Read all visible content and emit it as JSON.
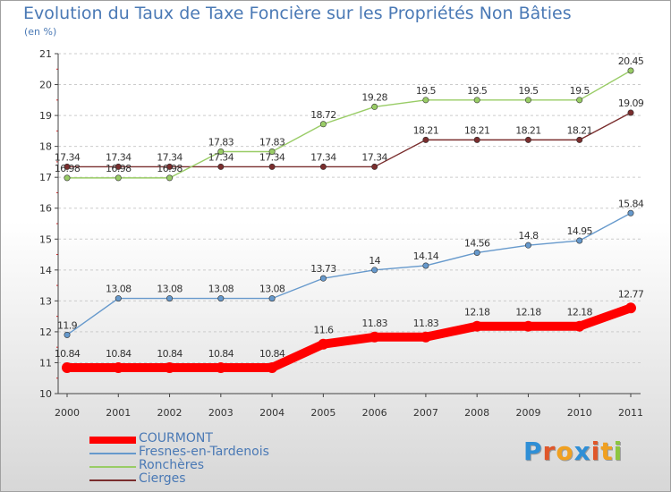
{
  "title": "Evolution du Taux de Taxe Foncière sur les Propriétés Non Bâties",
  "subtitle": "(en %)",
  "logo": {
    "text": "Proxiti",
    "letter_colors": [
      "#2f8fd6",
      "#e0572a",
      "#f0a020",
      "#2f8fd6",
      "#e0572a",
      "#f0a020",
      "#8cc63f"
    ]
  },
  "chart_data": {
    "type": "line",
    "title": "Evolution du Taux de Taxe Foncière sur les Propriétés Non Bâties",
    "ylabel": "(en %)",
    "xlabel": "",
    "x": [
      "2000",
      "2001",
      "2002",
      "2003",
      "2004",
      "2005",
      "2006",
      "2007",
      "2008",
      "2009",
      "2010",
      "2011"
    ],
    "ylim": [
      10,
      21
    ],
    "yticks": [
      10,
      11,
      12,
      13,
      14,
      15,
      16,
      17,
      18,
      19,
      20,
      21
    ],
    "grid": "horizontal dashed",
    "legend_position": "bottom-left",
    "series": [
      {
        "name": "COURMONT",
        "color": "#ff0000",
        "emphasis": true,
        "values": [
          10.84,
          10.84,
          10.84,
          10.84,
          10.84,
          11.6,
          11.83,
          11.83,
          12.18,
          12.18,
          12.18,
          12.77
        ],
        "labels": [
          "10.84",
          "10.84",
          "10.84",
          "10.84",
          "10.84",
          "11.6",
          "11.83",
          "11.83",
          "12.18",
          "12.18",
          "12.18",
          "12.77"
        ]
      },
      {
        "name": "Fresnes-en-Tardenois",
        "color": "#6699cc",
        "emphasis": false,
        "values": [
          11.9,
          13.08,
          13.08,
          13.08,
          13.08,
          13.73,
          14,
          14.14,
          14.56,
          14.8,
          14.95,
          15.84
        ],
        "labels": [
          "11.9",
          "13.08",
          "13.08",
          "13.08",
          "13.08",
          "13.73",
          "14",
          "14.14",
          "14.56",
          "14.8",
          "14.95",
          "15.84"
        ]
      },
      {
        "name": "Ronchères",
        "color": "#99cc66",
        "emphasis": false,
        "values": [
          16.98,
          16.98,
          16.98,
          17.83,
          17.83,
          18.72,
          19.28,
          19.5,
          19.5,
          19.5,
          19.5,
          20.45
        ],
        "labels": [
          "16.98",
          "16.98",
          "16.98",
          "17.83",
          "17.83",
          "18.72",
          "19.28",
          "19.5",
          "19.5",
          "19.5",
          "19.5",
          "20.45"
        ]
      },
      {
        "name": "Cierges",
        "color": "#7a2e2e",
        "emphasis": false,
        "values": [
          17.34,
          17.34,
          17.34,
          17.34,
          17.34,
          17.34,
          17.34,
          18.21,
          18.21,
          18.21,
          18.21,
          19.09
        ],
        "labels": [
          "17.34",
          "17.34",
          "17.34",
          "17.34",
          "17.34",
          "17.34",
          "17.34",
          "18.21",
          "18.21",
          "18.21",
          "18.21",
          "19.09"
        ]
      }
    ]
  }
}
